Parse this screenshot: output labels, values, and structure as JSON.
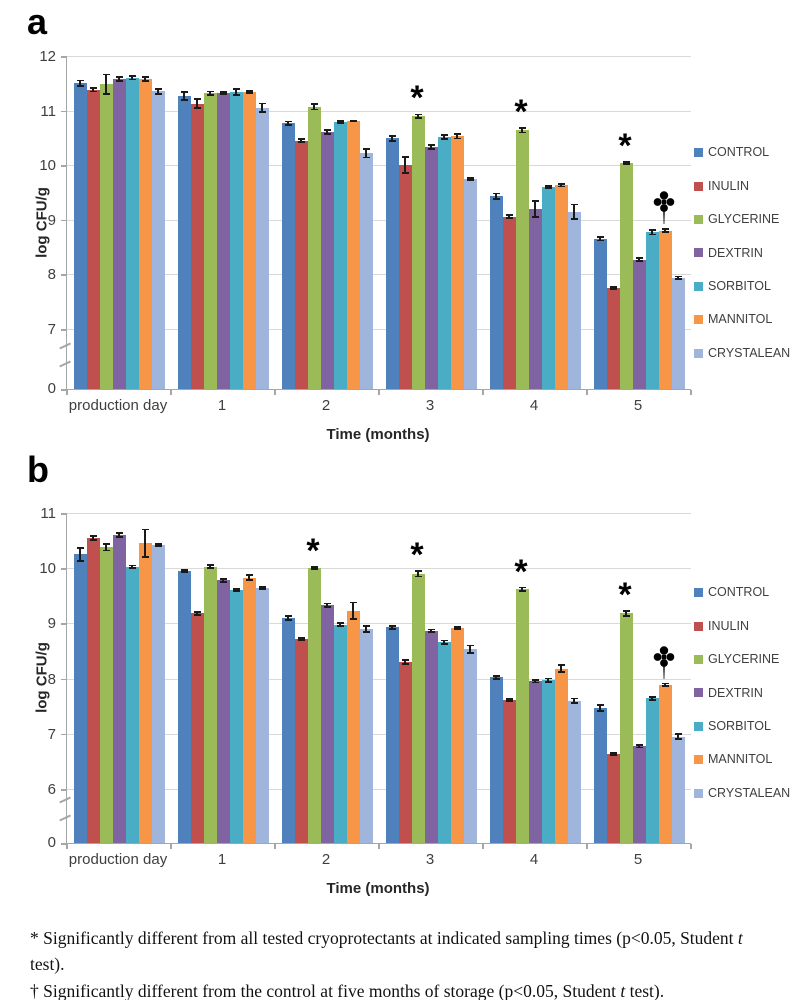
{
  "chart_data": [
    {
      "type": "bar",
      "panel_label": "a",
      "ylabel": "log CFU/g",
      "xlabel": "Time (months)",
      "categories": [
        "production day",
        "1",
        "2",
        "3",
        "4",
        "5"
      ],
      "y_ticks": [
        12,
        11,
        10,
        9,
        8,
        7
      ],
      "zero_tick_label": "0",
      "axis_break": true,
      "ylim": [
        7,
        12
      ],
      "grid": true,
      "legend_position": "right",
      "series": [
        {
          "name": "CONTROL",
          "color": "#4F81BD",
          "values": [
            11.5,
            11.27,
            10.77,
            10.49,
            9.43,
            8.65
          ],
          "errors": [
            0.05,
            0.07,
            0.03,
            0.04,
            0.05,
            0.03
          ]
        },
        {
          "name": "INULIN",
          "color": "#C0504D",
          "values": [
            11.38,
            11.13,
            10.45,
            10.0,
            9.06,
            7.75
          ],
          "errors": [
            0.03,
            0.08,
            0.03,
            0.15,
            0.03,
            0.02
          ]
        },
        {
          "name": "GLYCERINE",
          "color": "#9BBB59",
          "values": [
            11.48,
            11.32,
            11.07,
            10.9,
            10.64,
            10.04
          ],
          "errors": [
            0.18,
            0.03,
            0.05,
            0.03,
            0.04,
            0.02
          ]
        },
        {
          "name": "DEXTRIN",
          "color": "#8064A2",
          "values": [
            11.58,
            11.32,
            10.61,
            10.33,
            9.2,
            8.27
          ],
          "errors": [
            0.04,
            0.02,
            0.04,
            0.04,
            0.15,
            0.03
          ]
        },
        {
          "name": "SORBITOL",
          "color": "#4BACC6",
          "values": [
            11.6,
            11.34,
            10.79,
            10.52,
            9.6,
            8.77
          ],
          "errors": [
            0.03,
            0.06,
            0.02,
            0.04,
            0.02,
            0.04
          ]
        },
        {
          "name": "MANNITOL",
          "color": "#F79646",
          "values": [
            11.58,
            11.34,
            10.81,
            10.53,
            9.63,
            8.8
          ],
          "errors": [
            0.04,
            0.02,
            0.01,
            0.04,
            0.02,
            0.03
          ]
        },
        {
          "name": "CRYSTALEAN",
          "color": "#9FB5DB",
          "values": [
            11.35,
            11.05,
            10.22,
            9.75,
            9.15,
            7.94
          ],
          "errors": [
            0.04,
            0.08,
            0.08,
            0.02,
            0.13,
            0.02
          ]
        }
      ],
      "annotations": [
        {
          "symbol": "*",
          "series": "GLYCERINE",
          "category_index": 3
        },
        {
          "symbol": "*",
          "series": "GLYCERINE",
          "category_index": 4
        },
        {
          "symbol": "*",
          "series": "GLYCERINE",
          "category_index": 5
        },
        {
          "symbol": "†",
          "series": "MANNITOL",
          "category_index": 5
        }
      ]
    },
    {
      "type": "bar",
      "panel_label": "b",
      "ylabel": "log CFU/g",
      "xlabel": "Time (months)",
      "categories": [
        "production day",
        "1",
        "2",
        "3",
        "4",
        "5"
      ],
      "y_ticks": [
        11,
        10,
        9,
        8,
        7,
        6
      ],
      "zero_tick_label": "0",
      "axis_break": true,
      "ylim": [
        6,
        11
      ],
      "grid": true,
      "legend_position": "right",
      "series": [
        {
          "name": "CONTROL",
          "color": "#4F81BD",
          "values": [
            10.25,
            9.95,
            9.1,
            8.93,
            8.02,
            7.47
          ],
          "errors": [
            0.12,
            0.02,
            0.04,
            0.03,
            0.03,
            0.05
          ]
        },
        {
          "name": "INULIN",
          "color": "#C0504D",
          "values": [
            10.55,
            9.18,
            8.72,
            8.3,
            7.61,
            6.63
          ],
          "errors": [
            0.04,
            0.03,
            0.02,
            0.04,
            0.02,
            0.02
          ]
        },
        {
          "name": "GLYCERINE",
          "color": "#9BBB59",
          "values": [
            10.38,
            10.03,
            10.0,
            9.9,
            9.62,
            9.18
          ],
          "errors": [
            0.06,
            0.03,
            0.02,
            0.05,
            0.03,
            0.05
          ]
        },
        {
          "name": "DEXTRIN",
          "color": "#8064A2",
          "values": [
            10.6,
            9.78,
            9.33,
            8.87,
            7.95,
            6.77
          ],
          "errors": [
            0.04,
            0.03,
            0.03,
            0.02,
            0.02,
            0.02
          ]
        },
        {
          "name": "SORBITOL",
          "color": "#4BACC6",
          "values": [
            10.03,
            9.6,
            8.98,
            8.66,
            7.97,
            7.64
          ],
          "errors": [
            0.02,
            0.02,
            0.03,
            0.03,
            0.03,
            0.03
          ]
        },
        {
          "name": "MANNITOL",
          "color": "#F79646",
          "values": [
            10.45,
            9.83,
            9.23,
            8.92,
            8.18,
            7.89
          ],
          "errors": [
            0.25,
            0.05,
            0.15,
            0.02,
            0.06,
            0.02
          ]
        },
        {
          "name": "CRYSTALEAN",
          "color": "#9FB5DB",
          "values": [
            10.42,
            9.64,
            8.9,
            8.53,
            7.6,
            6.95
          ],
          "errors": [
            0.02,
            0.02,
            0.05,
            0.07,
            0.04,
            0.05
          ]
        }
      ],
      "annotations": [
        {
          "symbol": "*",
          "series": "GLYCERINE",
          "category_index": 2
        },
        {
          "symbol": "*",
          "series": "GLYCERINE",
          "category_index": 3
        },
        {
          "symbol": "*",
          "series": "GLYCERINE",
          "category_index": 4
        },
        {
          "symbol": "*",
          "series": "GLYCERINE",
          "category_index": 5
        },
        {
          "symbol": "†",
          "series": "MANNITOL",
          "category_index": 5
        }
      ]
    }
  ],
  "caption": {
    "lines": [
      {
        "segments": [
          {
            "text": "* Significantly different from all tested cryoprotectants at indicated sampling times (p<0.05, Student "
          },
          {
            "text": "t",
            "italic": true
          },
          {
            "text": " test)."
          }
        ]
      },
      {
        "segments": [
          {
            "text": "† Significantly different from the control at five months of storage (p<0.05, Student "
          },
          {
            "text": "t",
            "italic": true
          },
          {
            "text": " test)."
          }
        ]
      }
    ]
  }
}
